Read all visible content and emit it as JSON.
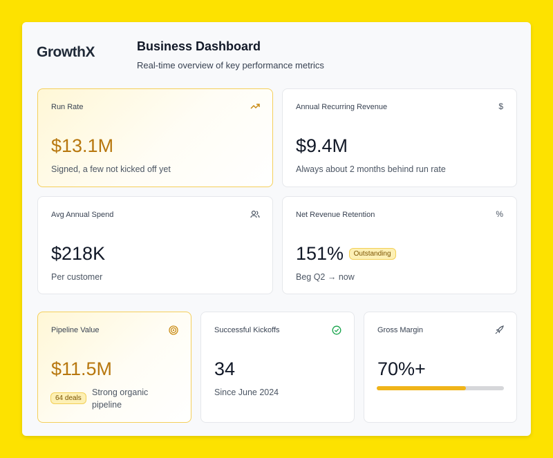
{
  "logo": "GrowthX",
  "header": {
    "title": "Business Dashboard",
    "subtitle": "Real-time overview of key performance metrics"
  },
  "cards": [
    {
      "label": "Run Rate",
      "value": "$13.1M",
      "note": "Signed, a few not kicked off yet"
    },
    {
      "label": "Annual Recurring Revenue",
      "icon": "$",
      "value": "$9.4M",
      "note": "Always about 2 months behind run rate"
    },
    {
      "label": "Avg Annual Spend",
      "value": "$218K",
      "note": "Per customer"
    },
    {
      "label": "Net Revenue Retention",
      "icon": "%",
      "value": "151%",
      "badge": "Outstanding",
      "note": "Beg Q2 → now"
    },
    {
      "label": "Pipeline Value",
      "value": "$11.5M",
      "badge": "64 deals",
      "note": "Strong organic pipeline"
    },
    {
      "label": "Successful Kickoffs",
      "value": "34",
      "note": "Since June 2024"
    },
    {
      "label": "Gross Margin",
      "value": "70%+",
      "progress": 70
    }
  ]
}
